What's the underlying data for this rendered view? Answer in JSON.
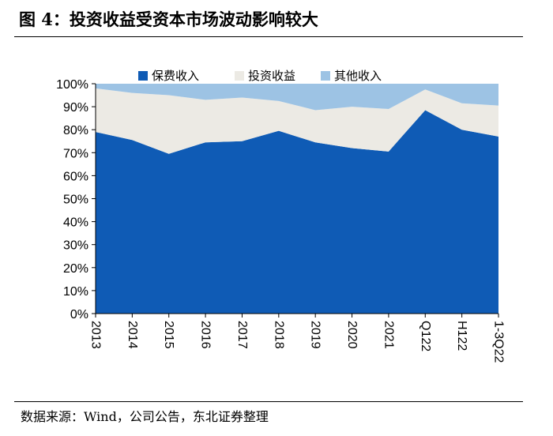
{
  "figure": {
    "title": "图 4：投资收益受资本市场波动影响较大",
    "source": "数据来源：Wind，公司公告，东北证券整理"
  },
  "chart_data": {
    "type": "area",
    "stacked": true,
    "categories": [
      "2013",
      "2014",
      "2015",
      "2016",
      "2017",
      "2018",
      "2019",
      "2020",
      "2021",
      "Q122",
      "H122",
      "1-3Q22"
    ],
    "series": [
      {
        "name": "保费收入",
        "color": "#0F5BB5",
        "values": [
          0.79,
          0.755,
          0.695,
          0.745,
          0.75,
          0.795,
          0.745,
          0.72,
          0.705,
          0.885,
          0.8,
          0.77
        ]
      },
      {
        "name": "投资收益",
        "color": "#ECEAE4",
        "values": [
          0.19,
          0.205,
          0.255,
          0.185,
          0.19,
          0.13,
          0.14,
          0.18,
          0.185,
          0.09,
          0.115,
          0.135
        ]
      },
      {
        "name": "其他收入",
        "color": "#9DC3E4",
        "values": [
          0.02,
          0.04,
          0.05,
          0.07,
          0.06,
          0.075,
          0.115,
          0.1,
          0.11,
          0.025,
          0.085,
          0.095
        ]
      }
    ],
    "yticks": [
      "0%",
      "10%",
      "20%",
      "30%",
      "40%",
      "50%",
      "60%",
      "70%",
      "80%",
      "90%",
      "100%"
    ],
    "ylim": [
      0,
      1
    ],
    "xlabel": "",
    "ylabel": "",
    "grid": false,
    "legend_position": "top"
  }
}
